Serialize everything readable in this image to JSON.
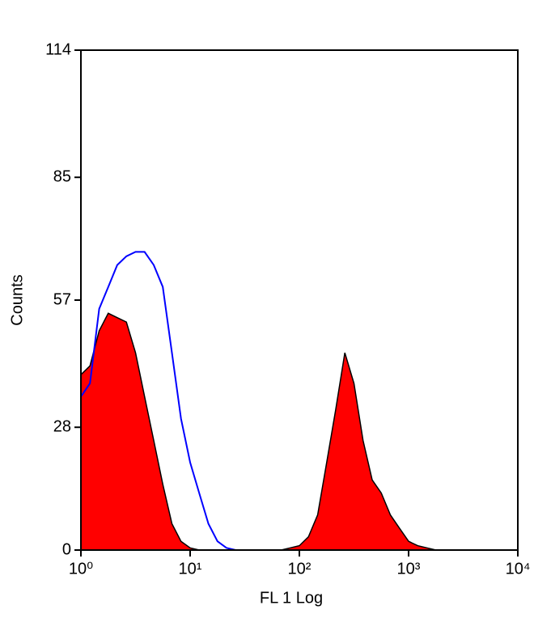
{
  "chart_data": {
    "type": "histogram-overlay",
    "x_label": "FL 1 Log",
    "y_label": "Counts",
    "xscale": "log",
    "xlim": [
      1,
      10000
    ],
    "xticks": [
      {
        "value": 1,
        "label": "10⁰"
      },
      {
        "value": 10,
        "label": "10¹"
      },
      {
        "value": 100,
        "label": "10²"
      },
      {
        "value": 1000,
        "label": "10³"
      },
      {
        "value": 10000,
        "label": "10⁴"
      }
    ],
    "ylim": [
      0,
      114
    ],
    "yticks": [
      0,
      28,
      57,
      85,
      114
    ],
    "x": [
      1,
      1.21,
      1.47,
      1.78,
      2.15,
      2.61,
      3.16,
      3.83,
      4.64,
      5.62,
      6.81,
      8.25,
      10,
      12.1,
      14.7,
      17.8,
      21.5,
      26.1,
      31.6,
      38.3,
      46.4,
      56.2,
      68.1,
      82.5,
      100,
      121,
      147,
      178,
      215,
      261,
      316,
      383,
      464,
      562,
      681,
      825,
      1000,
      1210,
      1470,
      1780,
      2150,
      2610,
      3160,
      3830,
      4640,
      5620,
      6810,
      8250,
      10000
    ],
    "series": [
      {
        "color": "#ff0000",
        "outline": "#000000",
        "filled": true,
        "values": [
          40,
          42,
          50,
          54,
          53,
          52,
          45,
          35,
          25,
          15,
          6,
          2,
          0.5,
          0,
          0,
          0,
          0,
          0,
          0,
          0,
          0,
          0,
          0,
          0.5,
          1,
          3,
          8,
          20,
          32,
          45,
          38,
          25,
          16,
          13,
          8,
          5,
          2,
          1,
          0.5,
          0,
          0,
          0,
          0,
          0,
          0,
          0,
          0,
          0,
          0
        ]
      },
      {
        "color": "#0000ff",
        "filled": false,
        "values": [
          35,
          38,
          55,
          60,
          65,
          67,
          68,
          68,
          65,
          60,
          45,
          30,
          20,
          13,
          6,
          2,
          0.5,
          0,
          0,
          0,
          0,
          0,
          0,
          0,
          0,
          0,
          0,
          0,
          0,
          0,
          0,
          0,
          0,
          0,
          0,
          0,
          0,
          0,
          0,
          0,
          0,
          0,
          0,
          0,
          0,
          0,
          0,
          0,
          0
        ]
      }
    ]
  }
}
